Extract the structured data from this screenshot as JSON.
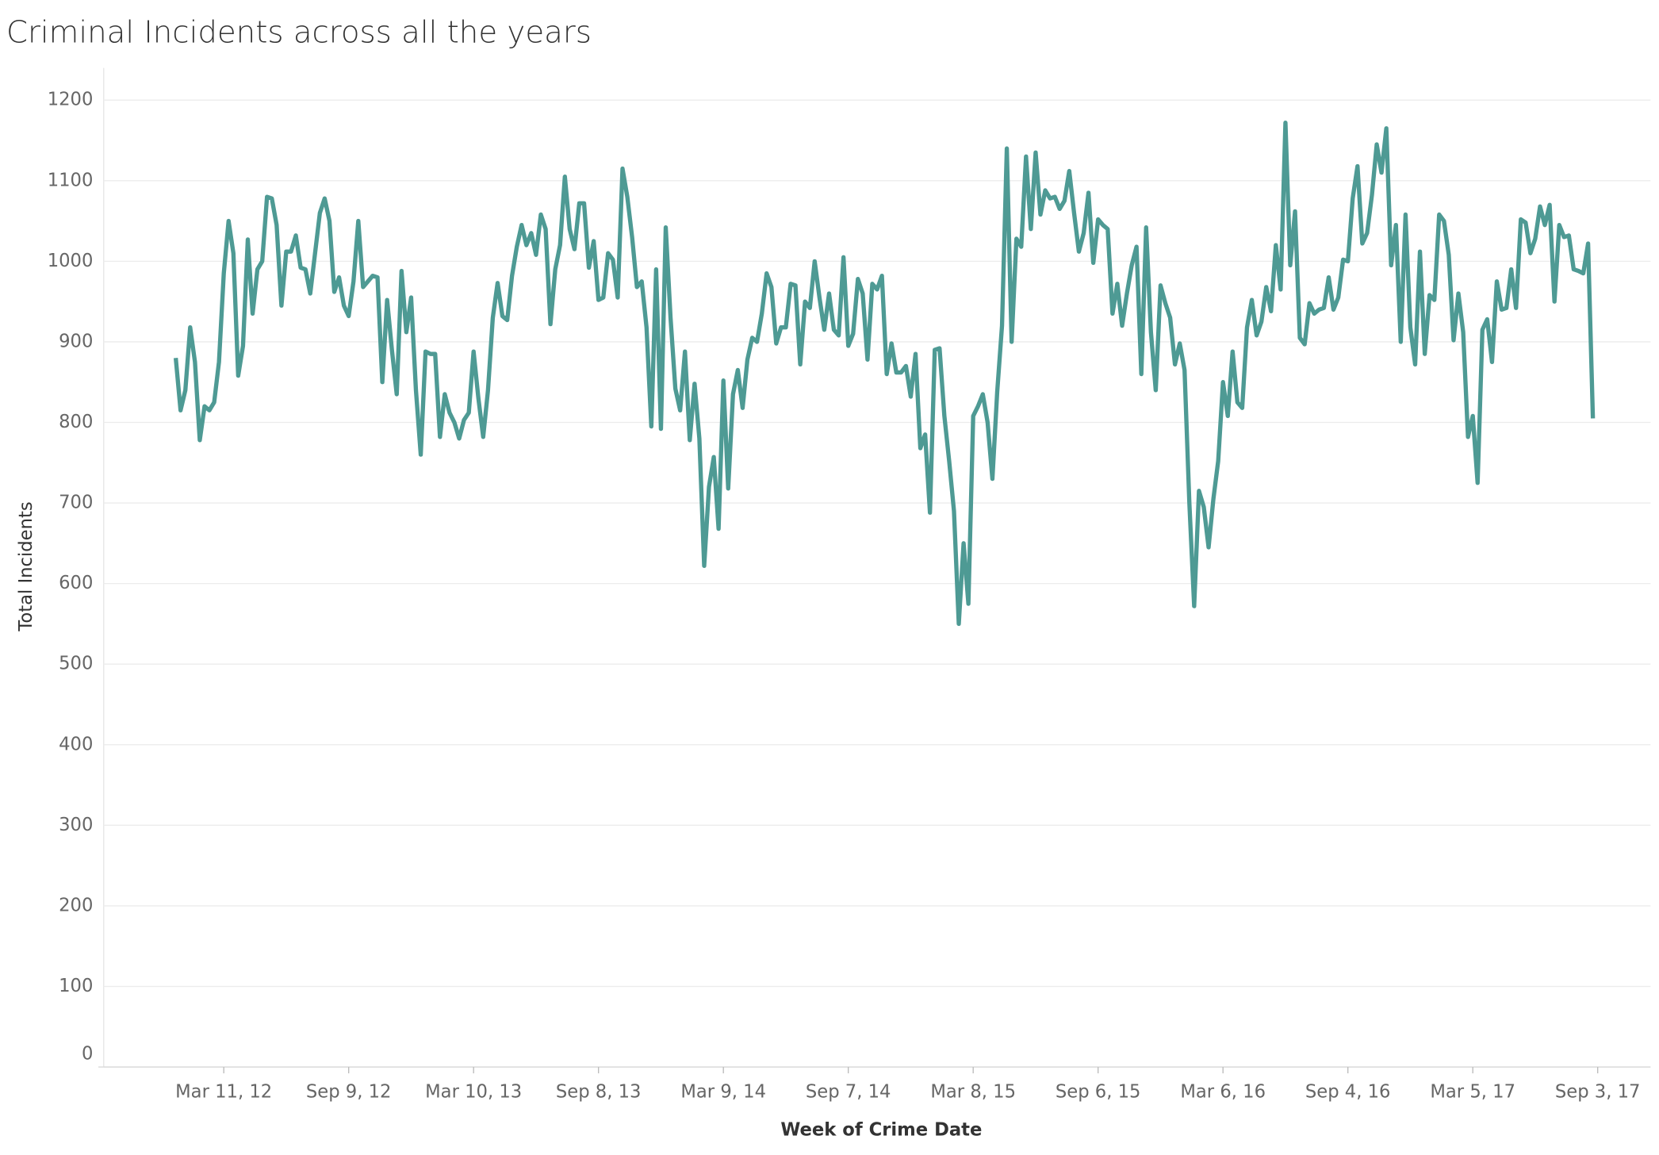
{
  "chart_data": {
    "type": "line",
    "title": "Criminal Incidents across all the years",
    "x_label": "Week of Crime Date",
    "y_label": "Total Incidents",
    "x": [
      "2012-01-01",
      "2012-01-08",
      "2012-01-15",
      "2012-01-22",
      "2012-01-29",
      "2012-02-05",
      "2012-02-12",
      "2012-02-19",
      "2012-02-26",
      "2012-03-04",
      "2012-03-11",
      "2012-03-18",
      "2012-03-25",
      "2012-04-01",
      "2012-04-08",
      "2012-04-15",
      "2012-04-22",
      "2012-04-29",
      "2012-05-06",
      "2012-05-13",
      "2012-05-20",
      "2012-05-27",
      "2012-06-03",
      "2012-06-10",
      "2012-06-17",
      "2012-06-24",
      "2012-07-01",
      "2012-07-08",
      "2012-07-15",
      "2012-07-22",
      "2012-07-29",
      "2012-08-05",
      "2012-08-12",
      "2012-08-19",
      "2012-08-26",
      "2012-09-02",
      "2012-09-09",
      "2012-09-16",
      "2012-09-23",
      "2012-09-30",
      "2012-10-07",
      "2012-10-14",
      "2012-10-21",
      "2012-10-28",
      "2012-11-04",
      "2012-11-11",
      "2012-11-18",
      "2012-11-25",
      "2012-12-02",
      "2012-12-09",
      "2012-12-16",
      "2012-12-23",
      "2012-12-30",
      "2013-01-06",
      "2013-01-13",
      "2013-01-20",
      "2013-01-27",
      "2013-02-03",
      "2013-02-10",
      "2013-02-17",
      "2013-02-24",
      "2013-03-03",
      "2013-03-10",
      "2013-03-17",
      "2013-03-24",
      "2013-03-31",
      "2013-04-07",
      "2013-04-14",
      "2013-04-21",
      "2013-04-28",
      "2013-05-05",
      "2013-05-12",
      "2013-05-19",
      "2013-05-26",
      "2013-06-02",
      "2013-06-09",
      "2013-06-16",
      "2013-06-23",
      "2013-06-30",
      "2013-07-07",
      "2013-07-14",
      "2013-07-21",
      "2013-07-28",
      "2013-08-04",
      "2013-08-11",
      "2013-08-18",
      "2013-08-25",
      "2013-09-01",
      "2013-09-08",
      "2013-09-15",
      "2013-09-22",
      "2013-09-29",
      "2013-10-06",
      "2013-10-13",
      "2013-10-20",
      "2013-10-27",
      "2013-11-03",
      "2013-11-10",
      "2013-11-17",
      "2013-11-24",
      "2013-12-01",
      "2013-12-08",
      "2013-12-15",
      "2013-12-22",
      "2013-12-29",
      "2014-01-05",
      "2014-01-12",
      "2014-01-19",
      "2014-01-26",
      "2014-02-02",
      "2014-02-09",
      "2014-02-16",
      "2014-02-23",
      "2014-03-02",
      "2014-03-09",
      "2014-03-16",
      "2014-03-23",
      "2014-03-30",
      "2014-04-06",
      "2014-04-13",
      "2014-04-20",
      "2014-04-27",
      "2014-05-04",
      "2014-05-11",
      "2014-05-18",
      "2014-05-25",
      "2014-06-01",
      "2014-06-08",
      "2014-06-15",
      "2014-06-22",
      "2014-06-29",
      "2014-07-06",
      "2014-07-13",
      "2014-07-20",
      "2014-07-27",
      "2014-08-03",
      "2014-08-10",
      "2014-08-17",
      "2014-08-24",
      "2014-08-31",
      "2014-09-07",
      "2014-09-14",
      "2014-09-21",
      "2014-09-28",
      "2014-10-05",
      "2014-10-12",
      "2014-10-19",
      "2014-10-26",
      "2014-11-02",
      "2014-11-09",
      "2014-11-16",
      "2014-11-23",
      "2014-11-30",
      "2014-12-07",
      "2014-12-14",
      "2014-12-21",
      "2014-12-28",
      "2015-01-04",
      "2015-01-11",
      "2015-01-18",
      "2015-01-25",
      "2015-02-01",
      "2015-02-08",
      "2015-02-15",
      "2015-02-22",
      "2015-03-01",
      "2015-03-08",
      "2015-03-15",
      "2015-03-22",
      "2015-03-29",
      "2015-04-05",
      "2015-04-12",
      "2015-04-19",
      "2015-04-26",
      "2015-05-03",
      "2015-05-10",
      "2015-05-17",
      "2015-05-24",
      "2015-05-31",
      "2015-06-07",
      "2015-06-14",
      "2015-06-21",
      "2015-06-28",
      "2015-07-05",
      "2015-07-12",
      "2015-07-19",
      "2015-07-26",
      "2015-08-02",
      "2015-08-09",
      "2015-08-16",
      "2015-08-23",
      "2015-08-30",
      "2015-09-06",
      "2015-09-13",
      "2015-09-20",
      "2015-09-27",
      "2015-10-04",
      "2015-10-11",
      "2015-10-18",
      "2015-10-25",
      "2015-11-01",
      "2015-11-08",
      "2015-11-15",
      "2015-11-22",
      "2015-11-29",
      "2015-12-06",
      "2015-12-13",
      "2015-12-20",
      "2015-12-27",
      "2016-01-03",
      "2016-01-10",
      "2016-01-17",
      "2016-01-24",
      "2016-01-31",
      "2016-02-07",
      "2016-02-14",
      "2016-02-21",
      "2016-02-28",
      "2016-03-06",
      "2016-03-13",
      "2016-03-20",
      "2016-03-27",
      "2016-04-03",
      "2016-04-10",
      "2016-04-17",
      "2016-04-24",
      "2016-05-01",
      "2016-05-08",
      "2016-05-15",
      "2016-05-22",
      "2016-05-29",
      "2016-06-05",
      "2016-06-12",
      "2016-06-19",
      "2016-06-26",
      "2016-07-03",
      "2016-07-10",
      "2016-07-17",
      "2016-07-24",
      "2016-07-31",
      "2016-08-07",
      "2016-08-14",
      "2016-08-21",
      "2016-08-28",
      "2016-09-04",
      "2016-09-11",
      "2016-09-18",
      "2016-09-25",
      "2016-10-02",
      "2016-10-09",
      "2016-10-16",
      "2016-10-23",
      "2016-10-30",
      "2016-11-06",
      "2016-11-13",
      "2016-11-20",
      "2016-11-27",
      "2016-12-04",
      "2016-12-11",
      "2016-12-18",
      "2016-12-25",
      "2017-01-01",
      "2017-01-08",
      "2017-01-15",
      "2017-01-22",
      "2017-01-29",
      "2017-02-05",
      "2017-02-12",
      "2017-02-19",
      "2017-02-26",
      "2017-03-05",
      "2017-03-12",
      "2017-03-19",
      "2017-03-26",
      "2017-04-02",
      "2017-04-09",
      "2017-04-16",
      "2017-04-23",
      "2017-04-30",
      "2017-05-07",
      "2017-05-14",
      "2017-05-21",
      "2017-05-28",
      "2017-06-04",
      "2017-06-11",
      "2017-06-18",
      "2017-06-25",
      "2017-07-02",
      "2017-07-09",
      "2017-07-16",
      "2017-07-23",
      "2017-07-30",
      "2017-08-06",
      "2017-08-13",
      "2017-08-20",
      "2017-08-27"
    ],
    "series": [
      {
        "name": "Total Incidents",
        "color": "#4e9a94",
        "values": [
          880,
          815,
          840,
          918,
          875,
          778,
          820,
          815,
          825,
          875,
          985,
          1050,
          1010,
          858,
          895,
          1027,
          935,
          990,
          1000,
          1080,
          1078,
          1045,
          945,
          1012,
          1012,
          1032,
          992,
          990,
          960,
          1010,
          1060,
          1078,
          1050,
          962,
          980,
          945,
          932,
          975,
          1050,
          968,
          975,
          982,
          980,
          850,
          952,
          890,
          835,
          988,
          912,
          955,
          840,
          760,
          888,
          885,
          885,
          782,
          835,
          812,
          800,
          780,
          803,
          812,
          888,
          830,
          782,
          840,
          930,
          973,
          932,
          927,
          982,
          1018,
          1045,
          1020,
          1035,
          1008,
          1058,
          1040,
          922,
          990,
          1020,
          1105,
          1040,
          1015,
          1072,
          1072,
          992,
          1025,
          952,
          955,
          1010,
          1002,
          955,
          1115,
          1080,
          1030,
          968,
          975,
          918,
          795,
          990,
          792,
          1042,
          930,
          842,
          815,
          888,
          778,
          848,
          780,
          622,
          720,
          757,
          668,
          852,
          718,
          835,
          865,
          818,
          878,
          905,
          900,
          935,
          985,
          968,
          898,
          918,
          918,
          972,
          970,
          872,
          950,
          942,
          1000,
          955,
          915,
          960,
          915,
          908,
          1005,
          895,
          910,
          978,
          960,
          878,
          972,
          965,
          982,
          860,
          898,
          862,
          862,
          870,
          832,
          885,
          768,
          785,
          688,
          890,
          892,
          808,
          752,
          690,
          550,
          650,
          575,
          808,
          820,
          835,
          800,
          730,
          838,
          920,
          1140,
          900,
          1028,
          1018,
          1130,
          1040,
          1135,
          1058,
          1088,
          1078,
          1080,
          1065,
          1075,
          1112,
          1060,
          1012,
          1035,
          1085,
          998,
          1052,
          1045,
          1040,
          935,
          972,
          920,
          960,
          995,
          1018,
          860,
          1042,
          912,
          840,
          970,
          948,
          930,
          872,
          898,
          865,
          700,
          572,
          715,
          695,
          645,
          705,
          752,
          850,
          808,
          888,
          825,
          818,
          918,
          952,
          908,
          925,
          968,
          938,
          1020,
          965,
          1172,
          995,
          1062,
          905,
          897,
          948,
          935,
          940,
          942,
          980,
          940,
          955,
          1002,
          1000,
          1078,
          1118,
          1022,
          1035,
          1082,
          1145,
          1110,
          1165,
          995,
          1045,
          900,
          1058,
          918,
          872,
          1012,
          885,
          958,
          952,
          1058,
          1050,
          1008,
          902,
          960,
          912,
          782,
          808,
          725,
          915,
          928,
          875,
          975,
          940,
          942,
          990,
          942,
          1052,
          1048,
          1010,
          1028,
          1068,
          1045,
          1070,
          950,
          1045,
          1030,
          1032,
          990,
          988,
          985,
          1022,
          805
        ]
      }
    ],
    "xlim": [
      "2011-09-18",
      "2017-11-19"
    ],
    "xticks": [
      {
        "value": "2012-03-11",
        "label": "Mar 11, 12"
      },
      {
        "value": "2012-09-09",
        "label": "Sep 9, 12"
      },
      {
        "value": "2013-03-10",
        "label": "Mar 10, 13"
      },
      {
        "value": "2013-09-08",
        "label": "Sep 8, 13"
      },
      {
        "value": "2014-03-09",
        "label": "Mar 9, 14"
      },
      {
        "value": "2014-09-07",
        "label": "Sep 7, 14"
      },
      {
        "value": "2015-03-08",
        "label": "Mar 8, 15"
      },
      {
        "value": "2015-09-06",
        "label": "Sep 6, 15"
      },
      {
        "value": "2016-03-06",
        "label": "Mar 6, 16"
      },
      {
        "value": "2016-09-04",
        "label": "Sep 4, 16"
      },
      {
        "value": "2017-03-05",
        "label": "Mar 5, 17"
      },
      {
        "value": "2017-09-03",
        "label": "Sep 3, 17"
      }
    ],
    "ylim": [
      0,
      1240
    ],
    "yticks": [
      0,
      100,
      200,
      300,
      400,
      500,
      600,
      700,
      800,
      900,
      1000,
      1100,
      1200
    ],
    "grid": true
  }
}
